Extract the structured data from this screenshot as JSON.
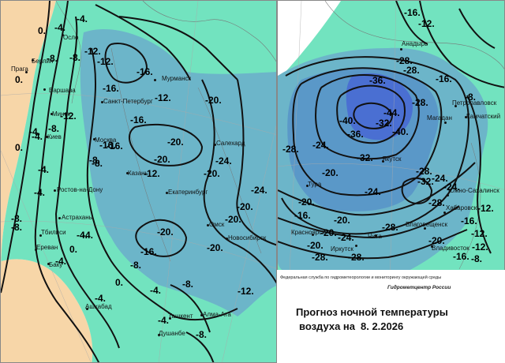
{
  "colors": {
    "warm": "#f7d6a8",
    "mint": "#72e3bf",
    "cold": "#6cb5c9",
    "colder": "#5a98c8",
    "coldest": "#4a6fd2"
  },
  "west": {
    "cities": [
      "Осло",
      "Берлин",
      "Прага",
      "Варшава",
      "Мурманск",
      "Санкт-Петербург",
      "Москва",
      "Киев",
      "Салехард",
      "Казань",
      "Екатеринбург",
      "Ростов-на-Дону",
      "Астрахань",
      "Тбилиси",
      "Ереван",
      "Баку",
      "Омск",
      "Новосибирск",
      "Ашхабад",
      "Ташкент",
      "Алма-Ата",
      "Душанбе",
      "Минск"
    ],
    "isotherms": [
      "-4.",
      "-8.",
      "-12.",
      "0.",
      "0.",
      "-4.",
      "-8.",
      "-12.",
      "-16.",
      "-16.",
      "-16.",
      "-16.",
      "-12.",
      "-20.",
      "-8.",
      "-4.",
      "0.",
      "-4.",
      "-8.",
      "-16.",
      "-20.",
      "-20.",
      "-24.",
      "-24.",
      "-20.",
      "-20.",
      "-20.",
      "-20.",
      "-16.",
      "-12.",
      "-20.",
      "-8.",
      "-4.",
      "0.",
      "-4.",
      "-8.",
      "-4.",
      "0.",
      "-4.",
      "-4.",
      "-8.",
      "-8.",
      "-12.",
      "-4.",
      "-8.",
      "-4.",
      "-8.",
      "-12.",
      "-4."
    ]
  },
  "east": {
    "cities": [
      "Анадырь",
      "Петропавловск",
      "Магадан",
      "Камчатский",
      "Якутск",
      "Тура",
      "Южно-Сахалинск",
      "Хабаровск",
      "Благовещенск",
      "Чита",
      "Иркутск",
      "Красноярск",
      "Владивосток"
    ],
    "isotherms": [
      "-16.",
      "-12.",
      "-28.",
      "-28.",
      "-16.",
      "-8.",
      "-36.",
      "-40.",
      "-44.",
      "-40.",
      "-36.",
      "-32.",
      "-24.",
      "-28.",
      "-20.",
      "-32.",
      "-28.",
      "-28.",
      "-24.",
      "-32.",
      "-24.",
      "-20.",
      "-20.",
      "-28.",
      "-16.",
      "-16.",
      "-12.",
      "-28.",
      "-24.",
      "-12.",
      "-20.",
      "-20.",
      "-16.",
      "-28.",
      "-20.",
      "-24.",
      "-28.",
      "-12.",
      "-8."
    ]
  },
  "footer": {
    "agency": "Федеральная служба по гидрометеорологии и мониторингу окружающей среды",
    "center": "Гидрометцентр России",
    "title": "Прогноз ночной температуры",
    "subtitle": "воздуха на",
    "date": "8. 2.2026"
  }
}
